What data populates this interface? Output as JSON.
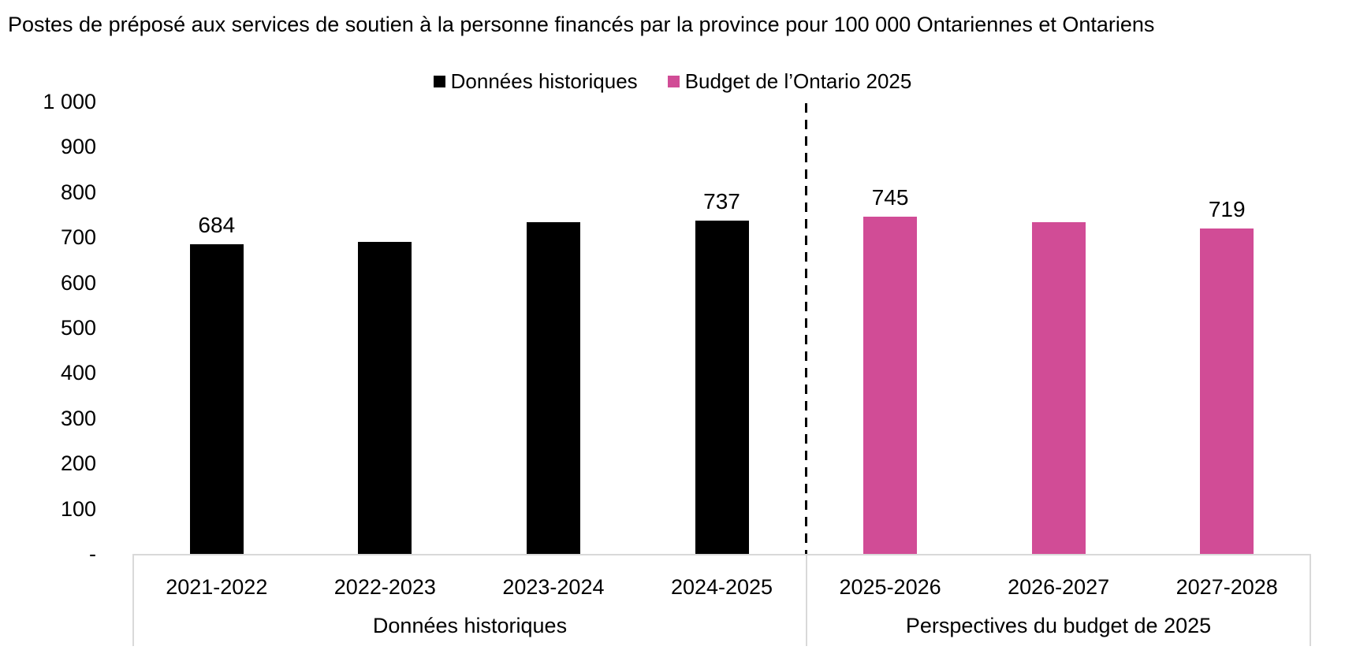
{
  "chart_data": {
    "type": "bar",
    "title": "Postes de préposé aux services de soutien à la personne financés par la province pour 100 000 Ontariennes et Ontariens",
    "categories": [
      "2021-2022",
      "2022-2023",
      "2023-2024",
      "2024-2025",
      "2025-2026",
      "2026-2027",
      "2027-2028"
    ],
    "series": [
      {
        "name": "Données historiques",
        "color": "#000000",
        "values": [
          684,
          690,
          734,
          737,
          null,
          null,
          null
        ]
      },
      {
        "name": "Budget de l’Ontario 2025",
        "color": "#D14C96",
        "values": [
          null,
          null,
          null,
          null,
          745,
          733,
          719
        ]
      }
    ],
    "data_labels": [
      684,
      null,
      null,
      737,
      745,
      null,
      719
    ],
    "ylim": [
      0,
      1000
    ],
    "y_tick_step": 100,
    "y_tick_labels": [
      "-",
      "100",
      "200",
      "300",
      "400",
      "500",
      "600",
      "700",
      "800",
      "900",
      "1 000"
    ],
    "x_groups": [
      {
        "label": "Données historiques",
        "start": 0,
        "end": 3
      },
      {
        "label": "Perspectives du budget de 2025",
        "start": 4,
        "end": 6
      }
    ],
    "grid": "off",
    "legend_position": "top",
    "separator": {
      "type": "dashed-vertical",
      "between": [
        "2024-2025",
        "2025-2026"
      ]
    }
  },
  "colors": {
    "historical": "#000000",
    "budget": "#D14C96",
    "box_border": "#D9D9D9",
    "text": "#000000"
  }
}
